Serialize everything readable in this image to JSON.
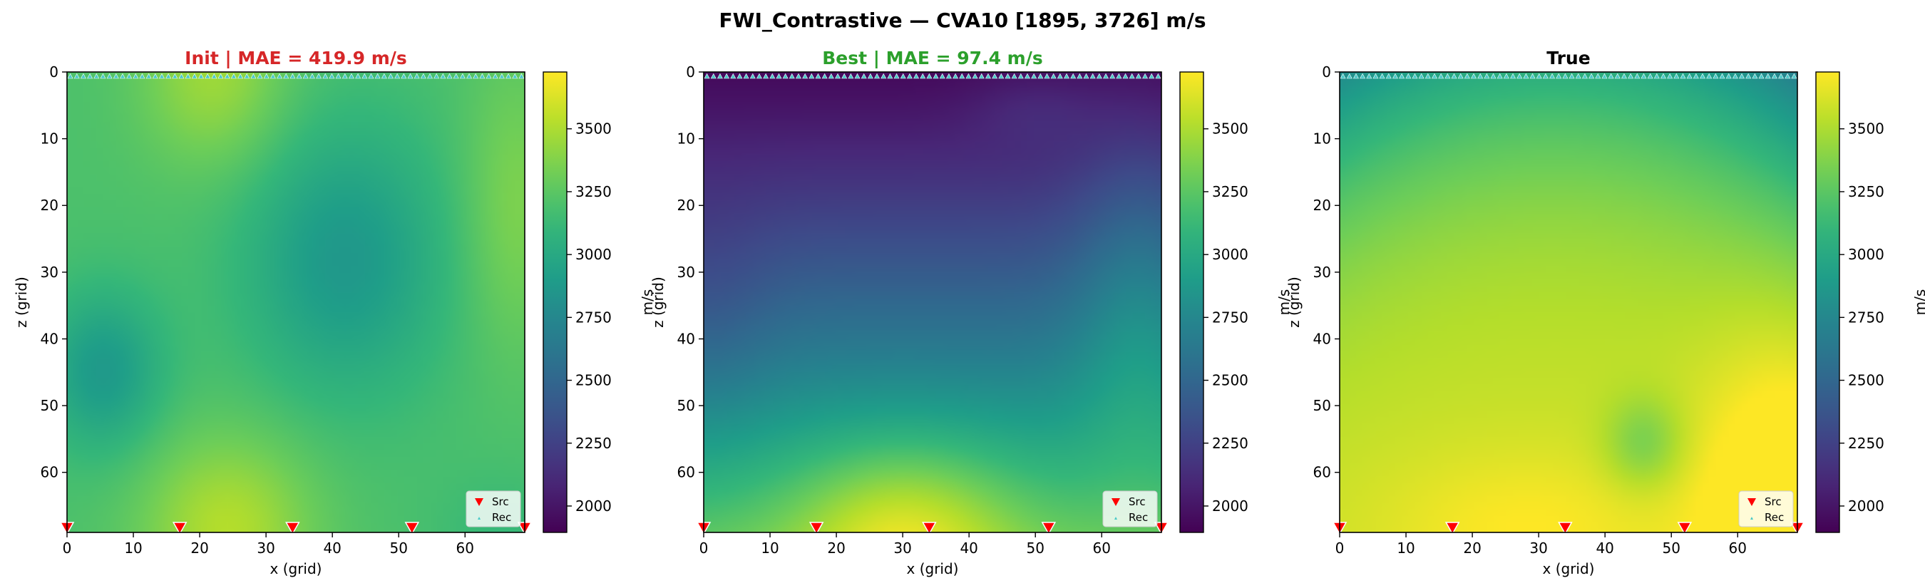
{
  "suptitle": "FWI_Contrastive — CVA10 [1895, 3726] m/s",
  "chart_data": [
    {
      "type": "heatmap",
      "title": "Init  |  MAE = 419.9 m/s",
      "title_color": "#d62728",
      "xlabel": "x (grid)",
      "ylabel": "z (grid)",
      "xlim": [
        0,
        69
      ],
      "ylim": [
        69,
        0
      ],
      "xticks": [
        0,
        10,
        20,
        30,
        40,
        50,
        60
      ],
      "yticks": [
        0,
        10,
        20,
        30,
        40,
        50,
        60
      ],
      "colorbar_label": "m/s",
      "colorbar_ticks": [
        2000,
        2250,
        2500,
        2750,
        3000,
        3250,
        3500
      ],
      "vmin": 1895,
      "vmax": 3726,
      "field_approx": "smooth background model: ~3150-3500 m/s, highest near x≈25 top and bottom, ~2850 centre-right and left around z≈45",
      "sources": [
        0,
        17,
        34,
        52,
        69
      ],
      "receivers_row": 0,
      "legend": [
        "Src",
        "Rec"
      ]
    },
    {
      "type": "heatmap",
      "title": "Best  |  MAE = 97.4 m/s",
      "title_color": "#2ca02c",
      "xlabel": "x (grid)",
      "ylabel": "z (grid)",
      "xlim": [
        0,
        69
      ],
      "ylim": [
        69,
        0
      ],
      "xticks": [
        0,
        10,
        20,
        30,
        40,
        50,
        60
      ],
      "yticks": [
        0,
        10,
        20,
        30,
        40,
        50,
        60
      ],
      "colorbar_label": "m/s",
      "colorbar_ticks": [
        2000,
        2250,
        2500,
        2750,
        3000,
        3250,
        3500
      ],
      "vmin": 1895,
      "vmax": 3726,
      "field_approx": "low velocity ~1950 at top increasing with depth to ~3650 at bottom centre (x≈30)",
      "sources": [
        0,
        17,
        34,
        52,
        69
      ],
      "receivers_row": 0,
      "legend": [
        "Src",
        "Rec"
      ]
    },
    {
      "type": "heatmap",
      "title": "True",
      "title_color": "#000000",
      "xlabel": "x (grid)",
      "ylabel": "z (grid)",
      "xlim": [
        0,
        69
      ],
      "ylim": [
        69,
        0
      ],
      "xticks": [
        0,
        10,
        20,
        30,
        40,
        50,
        60
      ],
      "yticks": [
        0,
        10,
        20,
        30,
        40,
        50,
        60
      ],
      "colorbar_label": "m/s",
      "colorbar_ticks": [
        2000,
        2250,
        2500,
        2750,
        3000,
        3250,
        3500
      ],
      "vmin": 1895,
      "vmax": 3726,
      "field_approx": "low velocity ~1900 at top, curved transition, high ~3700 at bottom-right",
      "sources": [
        0,
        17,
        34,
        52,
        69
      ],
      "receivers_row": 0,
      "legend": [
        "Src",
        "Rec"
      ]
    }
  ]
}
